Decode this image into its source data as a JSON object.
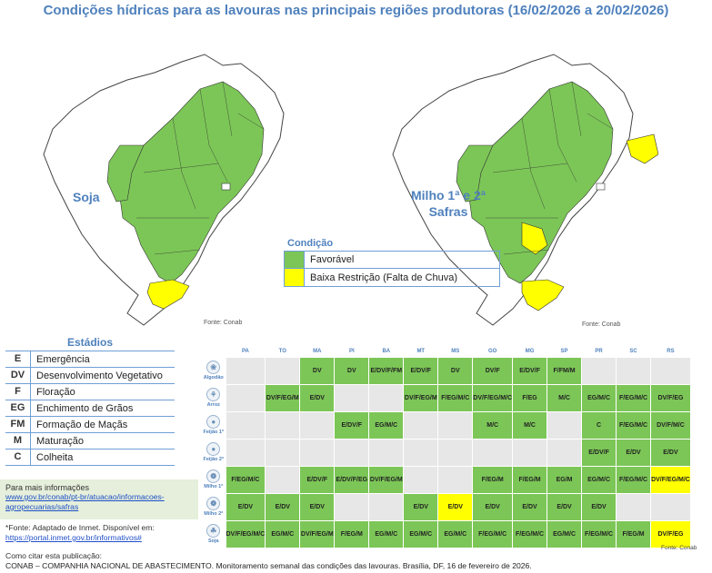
{
  "title": "Condições hídricas para as lavouras nas principais regiões produtoras (16/02/2026 a 20/02/2026)",
  "maps": {
    "left_label": "Soja",
    "right_label_line1": "Milho 1ª e 2ª",
    "right_label_line2": "Safras",
    "source_left": "Fonte: Conab",
    "source_right": "Fonte: Conab"
  },
  "legend": {
    "title": "Condição",
    "items": [
      {
        "label": "Favorável",
        "color": "#7cc657"
      },
      {
        "label": "Baixa Restrição (Falta de Chuva)",
        "color": "#ffff00"
      }
    ]
  },
  "estadios": {
    "title": "Estádios",
    "items": [
      {
        "code": "E",
        "name": "Emergência"
      },
      {
        "code": "DV",
        "name": "Desenvolvimento Vegetativo"
      },
      {
        "code": "F",
        "name": "Floração"
      },
      {
        "code": "EG",
        "name": "Enchimento de Grãos"
      },
      {
        "code": "FM",
        "name": "Formação de Maçãs"
      },
      {
        "code": "M",
        "name": "Maturação"
      },
      {
        "code": "C",
        "name": "Colheita"
      }
    ]
  },
  "info": {
    "head": "Para mais informações",
    "link1": "www.gov.br/conab/pt-br/atuacao/informacoes-",
    "link2": "agropecuarias/safras",
    "fonte_line1": "*Fonte: Adaptado de Inmet. Disponível em:",
    "fonte_link": "https://portal.inmet.gov.br/informativos#"
  },
  "citation": {
    "head": "Como citar esta publicação:",
    "text": "CONAB – COMPANHIA NACIONAL DE ABASTECIMENTO. Monitoramento semanal das condições das lavouras. Brasília, DF, 16 de fevereiro de 2026."
  },
  "table_source": "Fonte: Conab",
  "colors": {
    "fav": "#7cc657",
    "low": "#ffff00",
    "none": "#e7e7e7",
    "accent": "#4f81bd"
  },
  "chart_data": {
    "type": "table",
    "columns": [
      "PA",
      "TO",
      "MA",
      "PI",
      "BA",
      "MT",
      "MS",
      "GO",
      "MG",
      "SP",
      "PR",
      "SC",
      "RS"
    ],
    "rows": [
      {
        "crop": "Algodão",
        "icon": "cotton-icon",
        "cells": [
          {
            "v": "",
            "c": "none"
          },
          {
            "v": "",
            "c": "none"
          },
          {
            "v": "DV",
            "c": "fav"
          },
          {
            "v": "DV",
            "c": "fav"
          },
          {
            "v": "E/DV/F/FM",
            "c": "fav"
          },
          {
            "v": "E/DV/F",
            "c": "fav"
          },
          {
            "v": "DV",
            "c": "fav"
          },
          {
            "v": "DV/F",
            "c": "fav"
          },
          {
            "v": "E/DV/F",
            "c": "fav"
          },
          {
            "v": "F/FM/M",
            "c": "fav"
          },
          {
            "v": "",
            "c": "none"
          },
          {
            "v": "",
            "c": "none"
          },
          {
            "v": "",
            "c": "none"
          }
        ]
      },
      {
        "crop": "Arroz",
        "icon": "rice-icon",
        "cells": [
          {
            "v": "",
            "c": "none"
          },
          {
            "v": "DV/F/EG/M",
            "c": "fav"
          },
          {
            "v": "E/DV",
            "c": "fav"
          },
          {
            "v": "",
            "c": "none"
          },
          {
            "v": "",
            "c": "none"
          },
          {
            "v": "DV/F/EG/M",
            "c": "fav"
          },
          {
            "v": "F/EG/M/C",
            "c": "fav"
          },
          {
            "v": "DV/F/EG/M/C",
            "c": "fav"
          },
          {
            "v": "F/EG",
            "c": "fav"
          },
          {
            "v": "M/C",
            "c": "fav"
          },
          {
            "v": "EG/M/C",
            "c": "fav"
          },
          {
            "v": "F/EG/M/C",
            "c": "fav"
          },
          {
            "v": "DV/F/EG",
            "c": "fav"
          }
        ]
      },
      {
        "crop": "Feijão 1ª",
        "icon": "bean-icon",
        "cells": [
          {
            "v": "",
            "c": "none"
          },
          {
            "v": "",
            "c": "none"
          },
          {
            "v": "",
            "c": "none"
          },
          {
            "v": "E/DV/F",
            "c": "fav"
          },
          {
            "v": "EG/M/C",
            "c": "fav"
          },
          {
            "v": "",
            "c": "none"
          },
          {
            "v": "",
            "c": "none"
          },
          {
            "v": "M/C",
            "c": "fav"
          },
          {
            "v": "M/C",
            "c": "fav"
          },
          {
            "v": "",
            "c": "none"
          },
          {
            "v": "C",
            "c": "fav"
          },
          {
            "v": "F/EG/M/C",
            "c": "fav"
          },
          {
            "v": "DV/F/M/C",
            "c": "fav"
          }
        ]
      },
      {
        "crop": "Feijão 2ª",
        "icon": "bean-icon",
        "cells": [
          {
            "v": "",
            "c": "none"
          },
          {
            "v": "",
            "c": "none"
          },
          {
            "v": "",
            "c": "none"
          },
          {
            "v": "",
            "c": "none"
          },
          {
            "v": "",
            "c": "none"
          },
          {
            "v": "",
            "c": "none"
          },
          {
            "v": "",
            "c": "none"
          },
          {
            "v": "",
            "c": "none"
          },
          {
            "v": "",
            "c": "none"
          },
          {
            "v": "",
            "c": "none"
          },
          {
            "v": "E/DV/F",
            "c": "fav"
          },
          {
            "v": "E/DV",
            "c": "fav"
          },
          {
            "v": "E/DV",
            "c": "fav"
          }
        ]
      },
      {
        "crop": "Milho 1ª",
        "icon": "corn-icon",
        "cells": [
          {
            "v": "F/EG/M/C",
            "c": "fav"
          },
          {
            "v": "",
            "c": "none"
          },
          {
            "v": "E/DV/F",
            "c": "fav"
          },
          {
            "v": "E/DV/F/EG",
            "c": "fav"
          },
          {
            "v": "DV/F/EG/M",
            "c": "fav"
          },
          {
            "v": "",
            "c": "none"
          },
          {
            "v": "",
            "c": "none"
          },
          {
            "v": "F/EG/M",
            "c": "fav"
          },
          {
            "v": "F/EG/M",
            "c": "fav"
          },
          {
            "v": "EG/M",
            "c": "fav"
          },
          {
            "v": "EG/M/C",
            "c": "fav"
          },
          {
            "v": "F/EG/M/C",
            "c": "fav"
          },
          {
            "v": "DV/F/EG/M/C",
            "c": "low"
          }
        ]
      },
      {
        "crop": "Milho 2ª",
        "icon": "corn-icon",
        "cells": [
          {
            "v": "E/DV",
            "c": "fav"
          },
          {
            "v": "E/DV",
            "c": "fav"
          },
          {
            "v": "E/DV",
            "c": "fav"
          },
          {
            "v": "",
            "c": "none"
          },
          {
            "v": "",
            "c": "none"
          },
          {
            "v": "E/DV",
            "c": "fav"
          },
          {
            "v": "E/DV",
            "c": "low"
          },
          {
            "v": "E/DV",
            "c": "fav"
          },
          {
            "v": "E/DV",
            "c": "fav"
          },
          {
            "v": "E/DV",
            "c": "fav"
          },
          {
            "v": "E/DV",
            "c": "fav"
          },
          {
            "v": "",
            "c": "none"
          },
          {
            "v": "",
            "c": "none"
          }
        ]
      },
      {
        "crop": "Soja",
        "icon": "soy-icon",
        "cells": [
          {
            "v": "DV/F/EG/M/C",
            "c": "fav"
          },
          {
            "v": "EG/M/C",
            "c": "fav"
          },
          {
            "v": "DV/F/EG/M",
            "c": "fav"
          },
          {
            "v": "F/EG/M",
            "c": "fav"
          },
          {
            "v": "EG/M/C",
            "c": "fav"
          },
          {
            "v": "EG/M/C",
            "c": "fav"
          },
          {
            "v": "EG/M/C",
            "c": "fav"
          },
          {
            "v": "F/EG/M/C",
            "c": "fav"
          },
          {
            "v": "F/EG/M/C",
            "c": "fav"
          },
          {
            "v": "EG/M/C",
            "c": "fav"
          },
          {
            "v": "F/EG/M/C",
            "c": "fav"
          },
          {
            "v": "F/EG/M",
            "c": "fav"
          },
          {
            "v": "DV/F/EG",
            "c": "low"
          }
        ]
      }
    ]
  }
}
